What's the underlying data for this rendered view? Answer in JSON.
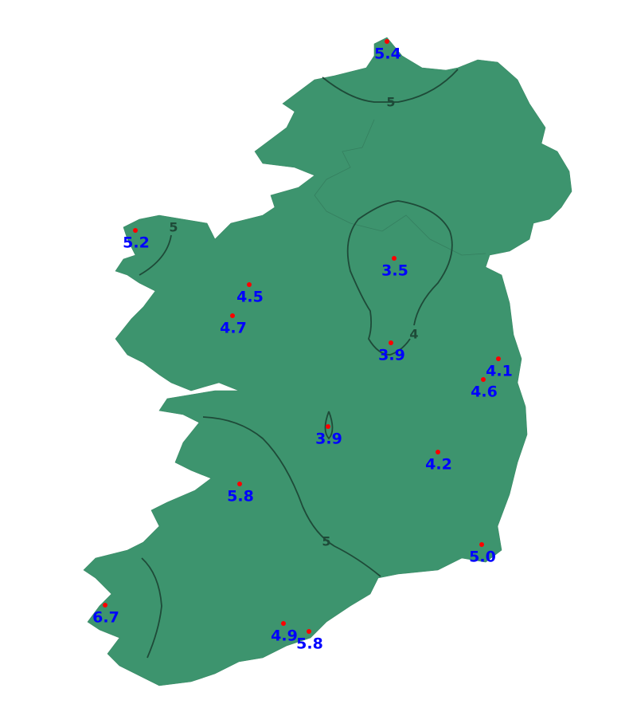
{
  "map": {
    "land_color": "#3d946e",
    "contour_color": "#1e4a38",
    "station_dot_color": "#ff0000",
    "station_label_color": "#0000ff",
    "contour_labels": [
      "5",
      "4",
      "5",
      "5"
    ],
    "stations": [
      {
        "value": "5.4"
      },
      {
        "value": "5.2"
      },
      {
        "value": "4.5"
      },
      {
        "value": "4.7"
      },
      {
        "value": "3.5"
      },
      {
        "value": "3.9"
      },
      {
        "value": "4.1"
      },
      {
        "value": "4.6"
      },
      {
        "value": "3.9"
      },
      {
        "value": "4.2"
      },
      {
        "value": "5.8"
      },
      {
        "value": "5.0"
      },
      {
        "value": "6.7"
      },
      {
        "value": "4.9"
      },
      {
        "value": "5.8"
      }
    ]
  }
}
